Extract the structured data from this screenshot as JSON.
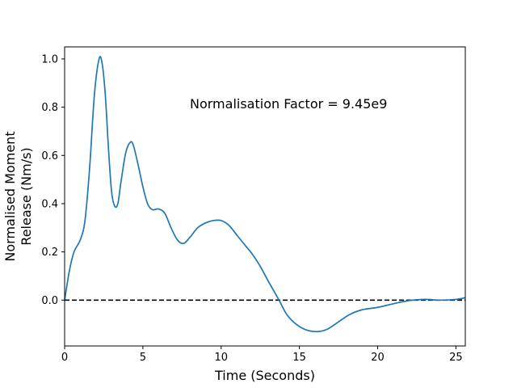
{
  "chart_data": {
    "type": "line",
    "title": "",
    "xlabel": "Time (Seconds)",
    "ylabel_lines": [
      "Normalised Moment",
      "Release (Nm/s)"
    ],
    "annotation": "Normalisation Factor = 9.45e9",
    "xlim": [
      0,
      25.6
    ],
    "ylim": [
      -0.19,
      1.05
    ],
    "xticks": [
      0,
      5,
      10,
      15,
      20,
      25
    ],
    "xtick_labels": [
      "0",
      "5",
      "10",
      "15",
      "20",
      "25"
    ],
    "yticks": [
      0.0,
      0.2,
      0.4,
      0.6,
      0.8,
      1.0
    ],
    "ytick_labels": [
      "0.0",
      "0.2",
      "0.4",
      "0.6",
      "0.8",
      "1.0"
    ],
    "grid": false,
    "reference_line": {
      "y": 0.0,
      "style": "dashed",
      "color": "#000000"
    },
    "series": [
      {
        "color": "#1f77b4",
        "x": [
          0,
          0.3,
          0.6,
          1.0,
          1.3,
          1.6,
          1.9,
          2.2,
          2.4,
          2.6,
          2.8,
          3.0,
          3.2,
          3.4,
          3.6,
          3.9,
          4.2,
          4.4,
          4.7,
          5.0,
          5.3,
          5.6,
          6.0,
          6.4,
          6.8,
          7.2,
          7.6,
          8.0,
          8.5,
          9.0,
          9.5,
          10.0,
          10.5,
          11.0,
          11.5,
          12.0,
          12.5,
          13.0,
          13.7,
          14.2,
          14.8,
          15.5,
          16.2,
          16.8,
          17.5,
          18.2,
          19.0,
          20.0,
          21.0,
          22.0,
          23.0,
          24.0,
          25.0,
          25.6
        ],
        "y": [
          0.0,
          0.12,
          0.2,
          0.25,
          0.33,
          0.55,
          0.85,
          1.0,
          0.98,
          0.85,
          0.63,
          0.45,
          0.39,
          0.4,
          0.49,
          0.61,
          0.655,
          0.64,
          0.56,
          0.47,
          0.4,
          0.375,
          0.378,
          0.36,
          0.3,
          0.25,
          0.235,
          0.26,
          0.3,
          0.32,
          0.33,
          0.33,
          0.31,
          0.27,
          0.23,
          0.19,
          0.14,
          0.08,
          0.0,
          -0.06,
          -0.1,
          -0.125,
          -0.13,
          -0.12,
          -0.09,
          -0.06,
          -0.04,
          -0.03,
          -0.015,
          -0.002,
          0.003,
          0.0,
          0.003,
          0.01
        ]
      }
    ]
  }
}
